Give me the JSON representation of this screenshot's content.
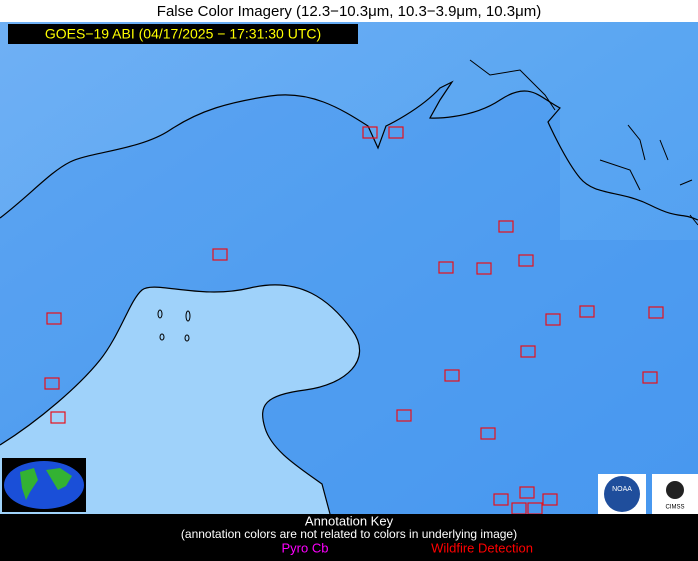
{
  "header": {
    "title": "False Color Imagery (12.3−10.3μm, 10.3−3.9μm, 10.3μm)",
    "subtitle": "GOES−19 ABI (04/17/2025 − 17:31:30 UTC)"
  },
  "logos": {
    "noaa": "NOAA",
    "cimss": "CIMSS"
  },
  "annotation_key": {
    "title": "Annotation Key",
    "note": "(annotation colors are not related to colors in underlying image)",
    "items": [
      "Pyro Cb",
      "Wildfire Detection"
    ]
  }
}
